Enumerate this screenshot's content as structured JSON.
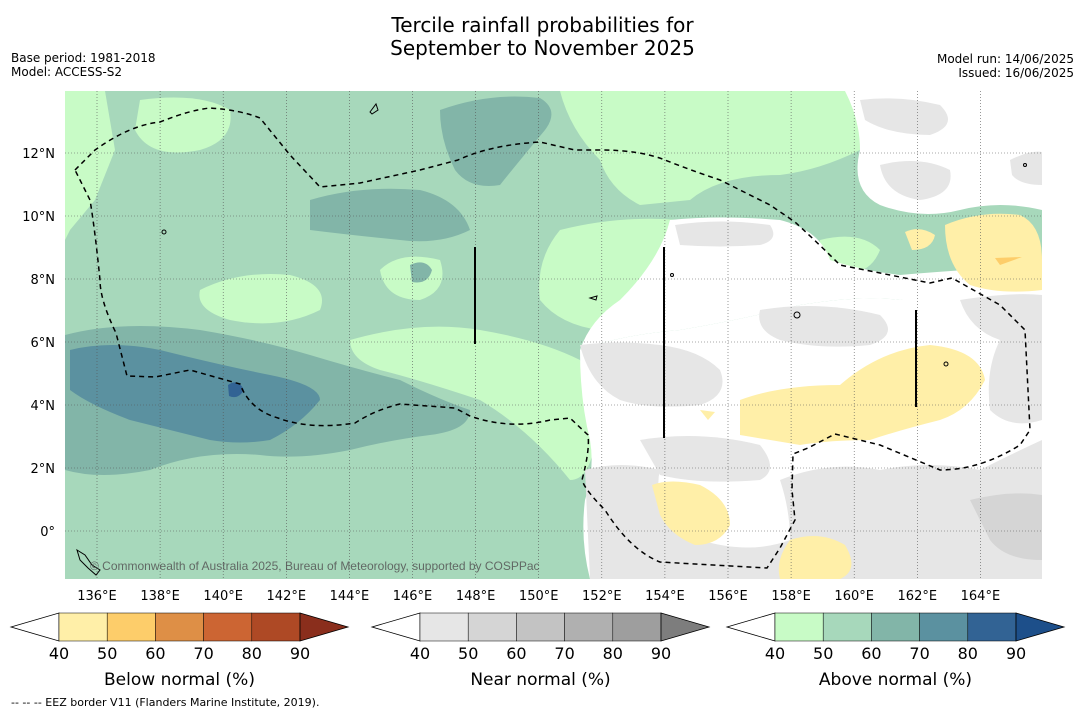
{
  "title_line1": "Tercile rainfall probabilities for",
  "title_line2": "September to November 2025",
  "meta_left": [
    "Base period: 1981-2018",
    "Model: ACCESS-S2"
  ],
  "meta_right": [
    "Model run: 14/06/2025",
    "Issued: 16/06/2025"
  ],
  "copyright": "© Commonwealth of Australia 2025, Bureau of Meteorology, supported by COSPPac",
  "lon_ticks": [
    "136°E",
    "138°E",
    "140°E",
    "142°E",
    "144°E",
    "146°E",
    "148°E",
    "150°E",
    "152°E",
    "154°E",
    "156°E",
    "158°E",
    "160°E",
    "162°E",
    "164°E"
  ],
  "lat_ticks": [
    "12°N",
    "10°N",
    "8°N",
    "6°N",
    "4°N",
    "2°N",
    "0°"
  ],
  "colorbars": [
    {
      "label": "Below normal (%)",
      "ticks": [
        "40",
        "50",
        "60",
        "70",
        "80",
        "90"
      ],
      "colors": [
        "#ffffff",
        "#ffefa8",
        "#fdcd6a",
        "#de8f46",
        "#cc6533",
        "#ae4925",
        "#8a2e1c"
      ]
    },
    {
      "label": "Near normal (%)",
      "ticks": [
        "40",
        "50",
        "60",
        "70",
        "80",
        "90"
      ],
      "colors": [
        "#ffffff",
        "#e6e6e6",
        "#d5d5d5",
        "#c3c3c3",
        "#b0b0b0",
        "#9e9e9e",
        "#7d7d7d"
      ]
    },
    {
      "label": "Above normal (%)",
      "ticks": [
        "40",
        "50",
        "60",
        "70",
        "80",
        "90"
      ],
      "colors": [
        "#ffffff",
        "#c8fbc6",
        "#a7d8bb",
        "#82b5a8",
        "#5b91a0",
        "#326394",
        "#1d4f8a"
      ]
    }
  ],
  "footnote": "--  --  -- EEZ border V11 (Flanders Marine Institute, 2019)."
}
